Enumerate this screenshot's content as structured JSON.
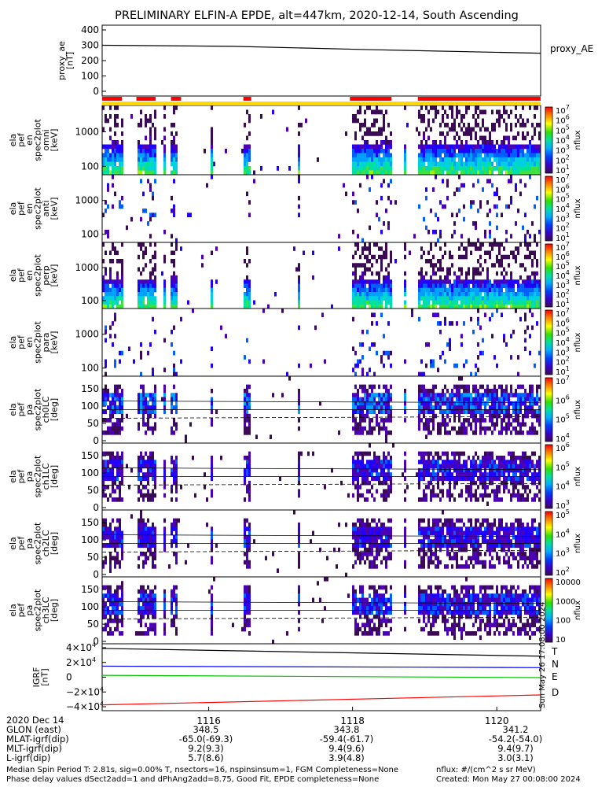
{
  "title": "PRELIMINARY ELFIN-A EPDE, alt=447km, 2020-12-14, South Ascending",
  "chart_data": {
    "type": "heatmap",
    "panels": [
      {
        "id": "proxy_ae",
        "kind": "line",
        "ylabel": [
          "proxy_ae",
          "[nT]"
        ],
        "legend": "proxy_AE",
        "yticks": [
          "400",
          "300",
          "200",
          "100",
          "0"
        ],
        "ylim": [
          0,
          400
        ],
        "x": [
          0,
          0.3,
          0.6,
          1.0
        ],
        "y": [
          300,
          293,
          272,
          248
        ]
      },
      {
        "id": "pef_en_omni",
        "kind": "energy",
        "ylabel": [
          "ela",
          "pef",
          "en",
          "spec2plot",
          "omni",
          "[keV]"
        ],
        "yticks": [
          "1000",
          "100"
        ],
        "clabel": "nflux",
        "cticks": [
          "10^7",
          "10^6",
          "10^5",
          "10^4",
          "10^3",
          "10^2",
          "10^1"
        ]
      },
      {
        "id": "pef_en_anti",
        "kind": "energy",
        "ylabel": [
          "ela",
          "pef",
          "en",
          "spec2plot",
          "anti",
          "[keV]"
        ],
        "yticks": [
          "1000",
          "100"
        ],
        "clabel": "nflux",
        "cticks": [
          "10^7",
          "10^6",
          "10^5",
          "10^4",
          "10^3",
          "10^2",
          "10^1"
        ]
      },
      {
        "id": "pef_en_perp",
        "kind": "energy",
        "ylabel": [
          "ela",
          "pef",
          "en",
          "spec2plot",
          "perp",
          "[keV]"
        ],
        "yticks": [
          "1000",
          "100"
        ],
        "clabel": "nflux",
        "cticks": [
          "10^7",
          "10^6",
          "10^5",
          "10^4",
          "10^3",
          "10^2",
          "10^1"
        ]
      },
      {
        "id": "pef_en_para",
        "kind": "energy",
        "ylabel": [
          "ela",
          "pef",
          "en",
          "spec2plot",
          "para",
          "[keV]"
        ],
        "yticks": [
          "1000",
          "100"
        ],
        "clabel": "nflux",
        "cticks": [
          "10^7",
          "10^6",
          "10^5",
          "10^4",
          "10^3",
          "10^2",
          "10^1"
        ]
      },
      {
        "id": "pef_pa_ch0",
        "kind": "pitch",
        "ylabel": [
          "ela",
          "pef",
          "pa",
          "spec2plot",
          "ch0LC",
          "[deg]"
        ],
        "yticks": [
          "150",
          "100",
          "50",
          "0"
        ],
        "clabel": "nflux",
        "cticks": [
          "10^7",
          "10^6",
          "10^5",
          "10^4"
        ],
        "intensity": 0.95
      },
      {
        "id": "pef_pa_ch1",
        "kind": "pitch",
        "ylabel": [
          "ela",
          "pef",
          "pa",
          "spec2plot",
          "ch1LC",
          "[deg]"
        ],
        "yticks": [
          "150",
          "100",
          "50",
          "0"
        ],
        "clabel": "nflux",
        "cticks": [
          "10^6",
          "10^5",
          "10^4",
          "10^3"
        ],
        "intensity": 0.6
      },
      {
        "id": "pef_pa_ch2",
        "kind": "pitch",
        "ylabel": [
          "ela",
          "pef",
          "pa",
          "spec2plot",
          "ch2LC",
          "[deg]"
        ],
        "yticks": [
          "150",
          "100",
          "50",
          "0"
        ],
        "clabel": "nflux",
        "cticks": [
          "10^5",
          "10^4",
          "10^3",
          "10^2"
        ],
        "intensity": 0.55
      },
      {
        "id": "pef_pa_ch3",
        "kind": "pitch",
        "ylabel": [
          "ela",
          "pef",
          "pa",
          "spec2plot",
          "ch3LC",
          "[deg]"
        ],
        "yticks": [
          "150",
          "100",
          "50",
          "0"
        ],
        "clabel": "nflux",
        "cticks": [
          "10000",
          "1000",
          "100",
          "10"
        ],
        "intensity": 0.7
      },
      {
        "id": "igrf",
        "kind": "lines",
        "ylabel": [
          "IGRF",
          "[nT]"
        ],
        "yticks": [
          "4×10^4",
          "2×10^4",
          "0",
          "−2×10^4",
          "−4×10^4"
        ],
        "ylim": [
          -40000,
          40000
        ],
        "series": [
          {
            "name": "T",
            "color": "#000000",
            "y": [
              39000,
              28500
            ]
          },
          {
            "name": "N",
            "color": "#0000ff",
            "y": [
              15000,
              13000
            ]
          },
          {
            "name": "E",
            "color": "#00c000",
            "y": [
              2500,
              -500
            ]
          },
          {
            "name": "D",
            "color": "#ff0000",
            "y": [
              -37500,
              -24000
            ]
          }
        ]
      }
    ],
    "status_bar": {
      "color": "#ff0000",
      "segments": [
        [
          0.0,
          0.045
        ],
        [
          0.078,
          0.122
        ],
        [
          0.157,
          0.18
        ],
        [
          0.322,
          0.34
        ],
        [
          0.565,
          0.66
        ],
        [
          0.72,
          1.0
        ]
      ]
    },
    "flag_bar_color": "#ffd700",
    "x_ticks": [
      "1116",
      "1118",
      "1120"
    ]
  },
  "footer": {
    "date": "2020 Dec 14",
    "rows": [
      {
        "label": "GLON (east)",
        "values": [
          "348.5",
          "343.8",
          "341.2"
        ]
      },
      {
        "label": "MLAT-igrf(dip)",
        "values": [
          "-65.0(-69.3)",
          "-59.4(-61.7)",
          "-54.2(-54.0)"
        ]
      },
      {
        "label": "MLT-igrf(dip)",
        "values": [
          "9.2(9.3)",
          "9.4(9.6)",
          "9.4(9.7)"
        ]
      },
      {
        "label": "L-igrf(dip)",
        "values": [
          "5.7(8.6)",
          "3.9(4.8)",
          "3.0(3.1)"
        ]
      }
    ],
    "note1": "Median Spin Period T: 2.81s, sig=0.00% T, nsectors=16, nspinsinsum=1, FGM Completeness=None",
    "note2": "Phase delay values dSect2add=1 and dPhAng2add=8.75, Good Fit, EPDE completeness=None",
    "units": "nflux: #/(cm^2 s sr MeV)",
    "created": "Created: Mon May 27 00:08:00 2024",
    "stamp": "Sun May 26 17:08:00 2024"
  }
}
